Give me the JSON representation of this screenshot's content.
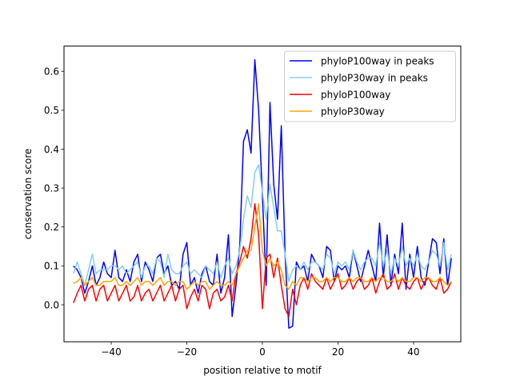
{
  "chart_data": {
    "type": "line",
    "xlabel": "position relative to motif",
    "ylabel": "conservation score",
    "xlim": [
      -52.5,
      52.5
    ],
    "ylim": [
      -0.095,
      0.665
    ],
    "xticks": [
      -40,
      -20,
      0,
      20,
      40
    ],
    "xtick_labels": [
      "−40",
      "−20",
      "0",
      "20",
      "40"
    ],
    "yticks": [
      0.0,
      0.1,
      0.2,
      0.3,
      0.4,
      0.5,
      0.6
    ],
    "ytick_labels": [
      "0.0",
      "0.1",
      "0.2",
      "0.3",
      "0.4",
      "0.5",
      "0.6"
    ],
    "grid": false,
    "legend_position": "top-right",
    "x": [
      -50,
      -49,
      -48,
      -47,
      -46,
      -45,
      -44,
      -43,
      -42,
      -41,
      -40,
      -39,
      -38,
      -37,
      -36,
      -35,
      -34,
      -33,
      -32,
      -31,
      -30,
      -29,
      -28,
      -27,
      -26,
      -25,
      -24,
      -23,
      -22,
      -21,
      -20,
      -19,
      -18,
      -17,
      -16,
      -15,
      -14,
      -13,
      -12,
      -11,
      -10,
      -9,
      -8,
      -7,
      -6,
      -5,
      -4,
      -3,
      -2,
      -1,
      0,
      1,
      2,
      3,
      4,
      5,
      6,
      7,
      8,
      9,
      10,
      11,
      12,
      13,
      14,
      15,
      16,
      17,
      18,
      19,
      20,
      21,
      22,
      23,
      24,
      25,
      26,
      27,
      28,
      29,
      30,
      31,
      32,
      33,
      34,
      35,
      36,
      37,
      38,
      39,
      40,
      41,
      42,
      43,
      44,
      45,
      46,
      47,
      48,
      49,
      50
    ],
    "series": [
      {
        "name": "phyloP100way in peaks",
        "color": "#0000ff",
        "values": [
          0.1,
          0.09,
          0.07,
          0.03,
          0.06,
          0.1,
          0.05,
          0.07,
          0.11,
          0.08,
          0.07,
          0.14,
          0.07,
          0.06,
          0.09,
          0.06,
          0.11,
          0.13,
          0.06,
          0.11,
          0.09,
          0.06,
          0.12,
          0.13,
          0.08,
          0.1,
          0.05,
          0.06,
          0.04,
          0.13,
          0.16,
          0.05,
          0.07,
          0.03,
          0.08,
          0.1,
          0.06,
          0.05,
          0.13,
          0.03,
          0.07,
          0.18,
          -0.03,
          0.05,
          0.15,
          0.42,
          0.45,
          0.39,
          0.63,
          0.5,
          0.28,
          0.05,
          0.52,
          0.31,
          0.22,
          0.46,
          0.13,
          -0.06,
          -0.055,
          0.11,
          0.09,
          0.1,
          0.06,
          0.13,
          0.11,
          0.1,
          0.07,
          0.15,
          0.14,
          0.06,
          0.1,
          0.09,
          0.1,
          0.07,
          0.14,
          0.1,
          0.06,
          0.1,
          0.14,
          0.1,
          0.06,
          0.21,
          0.07,
          0.18,
          0.05,
          0.13,
          0.08,
          0.21,
          0.04,
          0.13,
          0.07,
          0.15,
          0.07,
          0.05,
          0.11,
          0.17,
          0.16,
          0.08,
          0.17,
          0.05,
          0.12
        ]
      },
      {
        "name": "phyloP30way in peaks",
        "color": "#87ceeb",
        "values": [
          0.08,
          0.11,
          0.08,
          0.05,
          0.09,
          0.13,
          0.08,
          0.09,
          0.09,
          0.09,
          0.1,
          0.1,
          0.09,
          0.1,
          0.08,
          0.09,
          0.1,
          0.11,
          0.07,
          0.1,
          0.1,
          0.08,
          0.12,
          0.11,
          0.07,
          0.13,
          0.09,
          0.08,
          0.08,
          0.1,
          0.11,
          0.08,
          0.09,
          0.08,
          0.07,
          0.1,
          0.09,
          0.08,
          0.11,
          0.07,
          0.1,
          0.12,
          0.08,
          0.1,
          0.14,
          0.22,
          0.28,
          0.25,
          0.34,
          0.36,
          0.29,
          0.22,
          0.31,
          0.25,
          0.19,
          0.19,
          0.13,
          0.06,
          0.09,
          0.1,
          0.09,
          0.11,
          0.09,
          0.11,
          0.11,
          0.1,
          0.09,
          0.13,
          0.12,
          0.08,
          0.11,
          0.1,
          0.11,
          0.09,
          0.14,
          0.11,
          0.09,
          0.11,
          0.12,
          0.12,
          0.1,
          0.16,
          0.1,
          0.14,
          0.08,
          0.12,
          0.1,
          0.15,
          0.1,
          0.12,
          0.1,
          0.13,
          0.1,
          0.09,
          0.11,
          0.14,
          0.13,
          0.1,
          0.16,
          0.09,
          0.13
        ]
      },
      {
        "name": "phyloP100way",
        "color": "#ff0000",
        "values": [
          0.005,
          0.03,
          0.05,
          0.01,
          0.04,
          0.05,
          0.01,
          0.04,
          0.05,
          0.01,
          0.03,
          0.05,
          0.01,
          0.03,
          0.05,
          0.01,
          0.02,
          0.05,
          0.01,
          0.03,
          0.04,
          0.01,
          0.03,
          0.05,
          0.01,
          0.03,
          0.05,
          0.01,
          0.04,
          0.05,
          -0.01,
          0.02,
          0.04,
          0.01,
          0.05,
          0.04,
          -0.01,
          0.03,
          0.04,
          0.01,
          0.02,
          0.05,
          0.01,
          0.08,
          0.11,
          0.15,
          0.12,
          0.17,
          0.26,
          0.18,
          -0.01,
          0.12,
          0.13,
          0.07,
          0.12,
          0.05,
          -0.01,
          -0.03,
          0.04,
          0.0,
          0.05,
          0.07,
          0.04,
          0.08,
          0.06,
          0.05,
          0.04,
          0.07,
          0.04,
          0.06,
          0.08,
          0.04,
          0.05,
          0.07,
          0.04,
          0.06,
          0.07,
          0.04,
          0.05,
          0.07,
          0.03,
          0.06,
          0.08,
          0.04,
          0.05,
          0.08,
          0.04,
          0.07,
          0.05,
          0.04,
          0.06,
          0.07,
          0.04,
          0.06,
          0.07,
          0.05,
          0.04,
          0.07,
          0.03,
          0.04,
          0.06
        ]
      },
      {
        "name": "phyloP30way",
        "color": "#ffa500",
        "values": [
          0.055,
          0.06,
          0.07,
          0.05,
          0.06,
          0.07,
          0.05,
          0.05,
          0.06,
          0.06,
          0.06,
          0.07,
          0.05,
          0.05,
          0.06,
          0.05,
          0.06,
          0.07,
          0.05,
          0.06,
          0.06,
          0.05,
          0.06,
          0.07,
          0.05,
          0.06,
          0.06,
          0.05,
          0.06,
          0.06,
          0.04,
          0.05,
          0.06,
          0.05,
          0.06,
          0.06,
          0.04,
          0.05,
          0.06,
          0.05,
          0.05,
          0.06,
          0.05,
          0.08,
          0.1,
          0.12,
          0.14,
          0.14,
          0.2,
          0.26,
          0.14,
          0.1,
          0.12,
          0.1,
          0.11,
          0.09,
          0.05,
          0.04,
          0.06,
          0.05,
          0.07,
          0.07,
          0.06,
          0.07,
          0.07,
          0.06,
          0.06,
          0.07,
          0.06,
          0.07,
          0.07,
          0.06,
          0.06,
          0.07,
          0.06,
          0.07,
          0.07,
          0.06,
          0.06,
          0.07,
          0.06,
          0.07,
          0.07,
          0.06,
          0.06,
          0.07,
          0.06,
          0.07,
          0.06,
          0.06,
          0.07,
          0.07,
          0.06,
          0.07,
          0.07,
          0.06,
          0.06,
          0.07,
          0.06,
          0.05,
          0.06
        ]
      }
    ]
  }
}
